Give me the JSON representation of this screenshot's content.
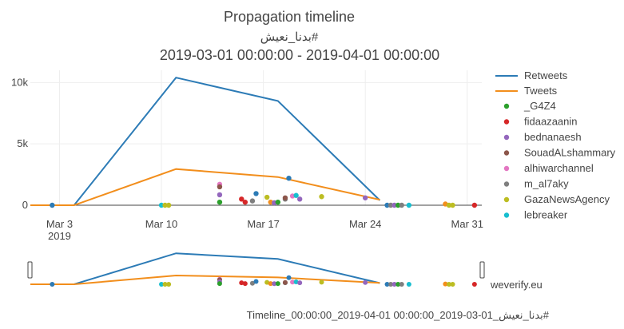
{
  "chart_data": {
    "type": "line",
    "title": "Propagation timeline",
    "subtitle_hashtag": "#بدنا_نعيش",
    "date_range": "2019-03-01 00:00:00 - 2019-04-01 00:00:00",
    "x_range": [
      "2019-03-01",
      "2019-04-01"
    ],
    "y_range": [
      0,
      11000
    ],
    "x_ticks": [
      {
        "date": "2019-03-03",
        "label": "Mar 3",
        "sublabel": "2019"
      },
      {
        "date": "2019-03-10",
        "label": "Mar 10",
        "sublabel": ""
      },
      {
        "date": "2019-03-17",
        "label": "Mar 17",
        "sublabel": ""
      },
      {
        "date": "2019-03-24",
        "label": "Mar 24",
        "sublabel": ""
      },
      {
        "date": "2019-03-31",
        "label": "Mar 31",
        "sublabel": ""
      }
    ],
    "y_ticks": [
      {
        "value": 0,
        "label": "0"
      },
      {
        "value": 5000,
        "label": "5k"
      },
      {
        "value": 10000,
        "label": "10k"
      }
    ],
    "series": [
      {
        "name": "Retweets",
        "color": "#2c7bb6",
        "x": [
          "2019-03-01",
          "2019-03-04",
          "2019-03-11",
          "2019-03-18",
          "2019-03-25"
        ],
        "y": [
          0,
          0,
          10400,
          8500,
          400
        ]
      },
      {
        "name": "Tweets",
        "color": "#f28e1c",
        "x": [
          "2019-03-01",
          "2019-03-04",
          "2019-03-11",
          "2019-03-18",
          "2019-03-25"
        ],
        "y": [
          0,
          0,
          2950,
          2300,
          450
        ]
      }
    ],
    "accounts": [
      {
        "name": "_G4Z4",
        "color": "#2ca02c"
      },
      {
        "name": "fidaazaanin",
        "color": "#d62728"
      },
      {
        "name": "bednanaesh",
        "color": "#9467bd"
      },
      {
        "name": "SouadALshammary",
        "color": "#8c564b"
      },
      {
        "name": "alhiwarchannel",
        "color": "#e377c2"
      },
      {
        "name": "m_al7aky",
        "color": "#7f7f7f"
      },
      {
        "name": "GazaNewsAgency",
        "color": "#bcbd22"
      },
      {
        "name": "lebreaker",
        "color": "#17becf"
      }
    ],
    "points": [
      {
        "x": "2019-03-02 12:00",
        "y": 0,
        "color": "#2c7bb6"
      },
      {
        "x": "2019-03-10 00:00",
        "y": 0,
        "color": "#17becf"
      },
      {
        "x": "2019-03-10 06:00",
        "y": 0,
        "color": "#bcbd22"
      },
      {
        "x": "2019-03-10 12:00",
        "y": 0,
        "color": "#bcbd22"
      },
      {
        "x": "2019-03-14 00:00",
        "y": 1700,
        "color": "#e377c2"
      },
      {
        "x": "2019-03-14 00:00",
        "y": 1500,
        "color": "#8c564b"
      },
      {
        "x": "2019-03-14 00:00",
        "y": 850,
        "color": "#9467bd"
      },
      {
        "x": "2019-03-14 00:00",
        "y": 250,
        "color": "#2ca02c"
      },
      {
        "x": "2019-03-15 12:00",
        "y": 500,
        "color": "#d62728"
      },
      {
        "x": "2019-03-15 18:00",
        "y": 250,
        "color": "#d62728"
      },
      {
        "x": "2019-03-16 06:00",
        "y": 350,
        "color": "#7f7f7f"
      },
      {
        "x": "2019-03-16 12:00",
        "y": 950,
        "color": "#2c7bb6"
      },
      {
        "x": "2019-03-17 06:00",
        "y": 650,
        "color": "#bcbd22"
      },
      {
        "x": "2019-03-17 12:00",
        "y": 250,
        "color": "#f28e1c"
      },
      {
        "x": "2019-03-17 18:00",
        "y": 200,
        "color": "#9467bd"
      },
      {
        "x": "2019-03-18 00:00",
        "y": 250,
        "color": "#2ca02c"
      },
      {
        "x": "2019-03-18 12:00",
        "y": 500,
        "color": "#7f7f7f"
      },
      {
        "x": "2019-03-18 12:00",
        "y": 600,
        "color": "#8c564b"
      },
      {
        "x": "2019-03-18 18:00",
        "y": 2200,
        "color": "#2c7bb6"
      },
      {
        "x": "2019-03-19 00:00",
        "y": 750,
        "color": "#e377c2"
      },
      {
        "x": "2019-03-19 06:00",
        "y": 800,
        "color": "#17becf"
      },
      {
        "x": "2019-03-19 12:00",
        "y": 500,
        "color": "#9467bd"
      },
      {
        "x": "2019-03-21 00:00",
        "y": 700,
        "color": "#bcbd22"
      },
      {
        "x": "2019-03-24 00:00",
        "y": 600,
        "color": "#9467bd"
      },
      {
        "x": "2019-03-25 12:00",
        "y": 0,
        "color": "#2c7bb6"
      },
      {
        "x": "2019-03-25 18:00",
        "y": 0,
        "color": "#7f7f7f"
      },
      {
        "x": "2019-03-26 00:00",
        "y": 0,
        "color": "#9467bd"
      },
      {
        "x": "2019-03-26 06:00",
        "y": 0,
        "color": "#2ca02c"
      },
      {
        "x": "2019-03-26 12:00",
        "y": 0,
        "color": "#7f7f7f"
      },
      {
        "x": "2019-03-27 00:00",
        "y": 0,
        "color": "#17becf"
      },
      {
        "x": "2019-03-29 12:00",
        "y": 100,
        "color": "#f28e1c"
      },
      {
        "x": "2019-03-29 18:00",
        "y": 0,
        "color": "#bcbd22"
      },
      {
        "x": "2019-03-30 00:00",
        "y": 0,
        "color": "#bcbd22"
      },
      {
        "x": "2019-03-31 12:00",
        "y": 0,
        "color": "#d62728"
      }
    ]
  },
  "watermark": "weverify.eu",
  "footer_text": "Timeline_بدنا_نعيش_01-03-2019_00:00:00 01-04-2019_00:00:00#"
}
